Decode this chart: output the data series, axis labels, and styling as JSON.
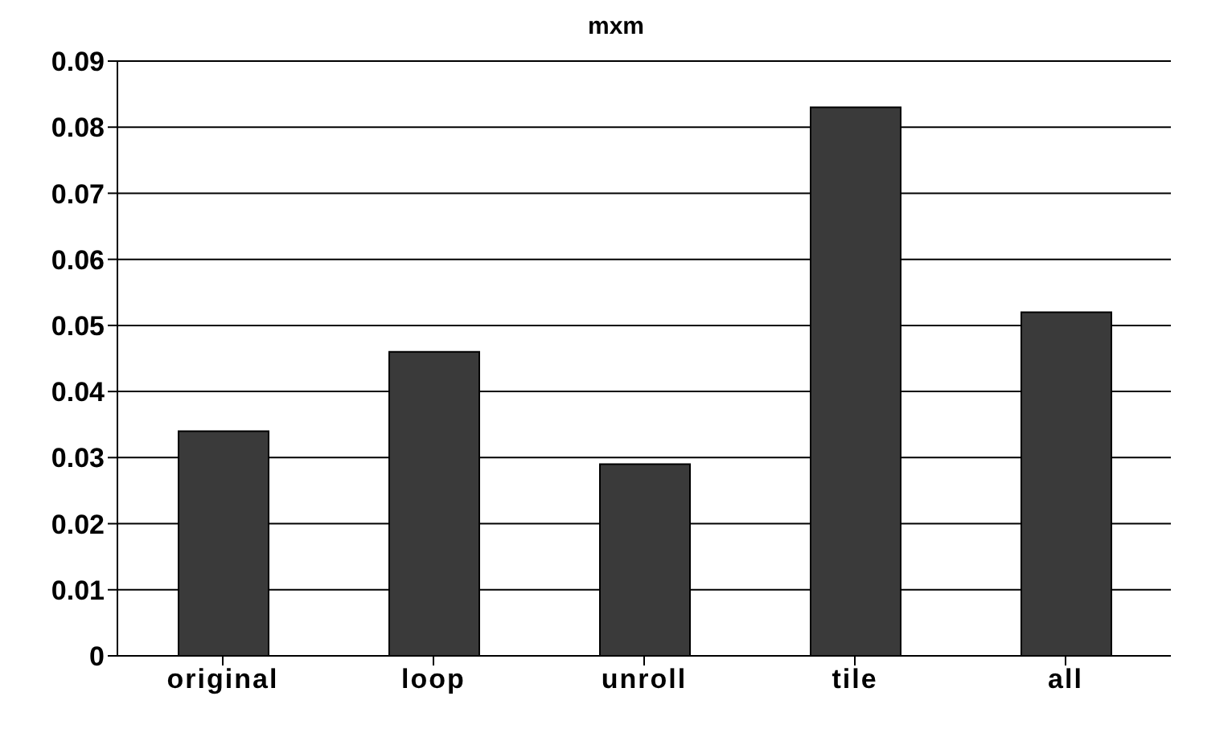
{
  "chart_data": {
    "type": "bar",
    "title": "mxm",
    "categories": [
      "original",
      "loop",
      "unroll",
      "tile",
      "all"
    ],
    "values": [
      0.034,
      0.046,
      0.029,
      0.083,
      0.052
    ],
    "color": "#3a3a3a",
    "ylim": [
      0,
      0.09
    ],
    "yticks": [
      0,
      0.01,
      0.02,
      0.03,
      0.04,
      0.05,
      0.06,
      0.07,
      0.08,
      0.09
    ],
    "grid": "y"
  }
}
